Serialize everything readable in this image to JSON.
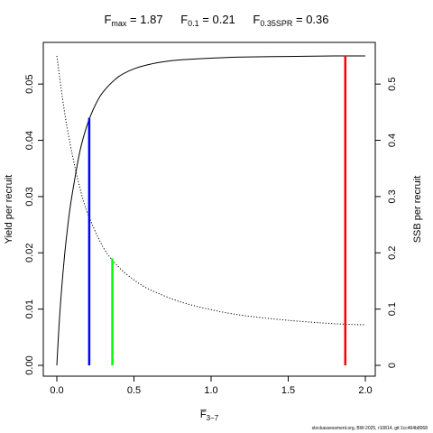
{
  "title": {
    "fmax": {
      "label": "F",
      "sub": "max",
      "value": " = 1.87"
    },
    "f01": {
      "label": "F",
      "sub": "0.1",
      "value": " = 0.21"
    },
    "fspr": {
      "label": "F",
      "sub": "0.35SPR",
      "value": " = 0.36"
    }
  },
  "footer": "stockassessment.org, BW-2025, r10814, git:1cc464b8068",
  "chart_data": {
    "type": "line",
    "xlabel": "F̅",
    "xlabel_sub": "3−7",
    "ylabel_left": "Yield per recruit",
    "ylabel_right": "SSB per recruit",
    "xlim": [
      0,
      2.0
    ],
    "ylim_left": [
      0,
      0.055
    ],
    "ylim_right": [
      0,
      0.55
    ],
    "x_ticks": [
      0.0,
      0.5,
      1.0,
      1.5,
      2.0
    ],
    "x_tick_labels": [
      "0.0",
      "0.5",
      "1.0",
      "1.5",
      "2.0"
    ],
    "y_left_ticks": [
      0.0,
      0.01,
      0.02,
      0.03,
      0.04,
      0.05
    ],
    "y_left_tick_labels": [
      "0.00",
      "0.01",
      "0.02",
      "0.03",
      "0.04",
      "0.05"
    ],
    "y_right_ticks": [
      0,
      0.1,
      0.2,
      0.3,
      0.4,
      0.5
    ],
    "y_right_tick_labels": [
      "0",
      "0.1",
      "0.2",
      "0.3",
      "0.4",
      "0.5"
    ],
    "series": [
      {
        "style": "solid",
        "axis": "left",
        "color": "#000000",
        "x": [
          0,
          0.02,
          0.05,
          0.08,
          0.1,
          0.15,
          0.2,
          0.25,
          0.3,
          0.4,
          0.5,
          0.6,
          0.7,
          0.8,
          1.0,
          1.2,
          1.5,
          1.8,
          2.0
        ],
        "y": [
          0,
          0.0095,
          0.0195,
          0.0268,
          0.0305,
          0.0381,
          0.043,
          0.0463,
          0.0486,
          0.0513,
          0.0527,
          0.0535,
          0.054,
          0.0543,
          0.0546,
          0.0548,
          0.0549,
          0.055,
          0.055
        ]
      },
      {
        "style": "dotted",
        "axis": "right",
        "color": "#000000",
        "x": [
          0,
          0.05,
          0.1,
          0.15,
          0.2,
          0.3,
          0.4,
          0.5,
          0.6,
          0.8,
          1.0,
          1.2,
          1.5,
          1.8,
          2.0
        ],
        "y": [
          0.55,
          0.45,
          0.375,
          0.315,
          0.27,
          0.21,
          0.175,
          0.152,
          0.135,
          0.113,
          0.099,
          0.089,
          0.08,
          0.074,
          0.072
        ]
      }
    ],
    "reference_lines": [
      {
        "name": "F0.1",
        "x": 0.21,
        "y_top": 0.044,
        "color": "#0000ff"
      },
      {
        "name": "F0.35SPR",
        "x": 0.36,
        "y_top": 0.019,
        "color": "#00ff00"
      },
      {
        "name": "Fmax",
        "x": 1.87,
        "y_top": 0.055,
        "color": "#ff0000"
      }
    ]
  }
}
